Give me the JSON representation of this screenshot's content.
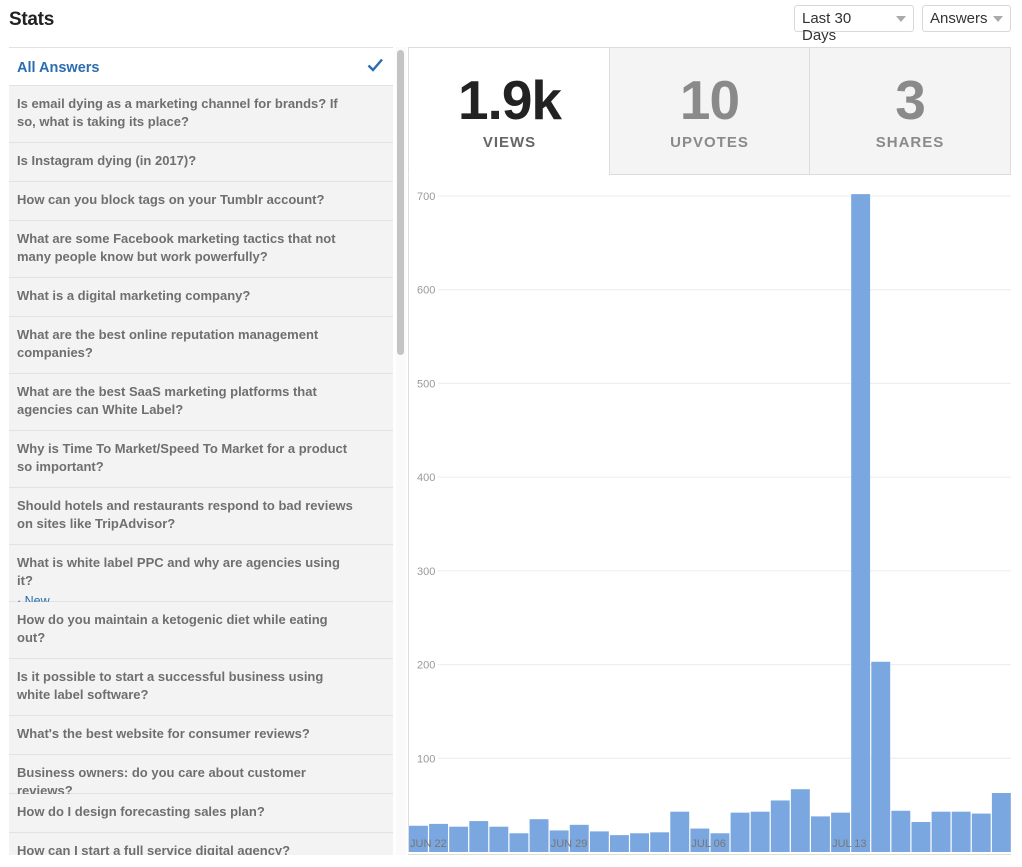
{
  "header": {
    "title": "Stats",
    "range_dropdown": "Last 30 Days",
    "type_dropdown": "Answers"
  },
  "sidebar": {
    "items": [
      {
        "label": "All Answers",
        "active": true
      },
      {
        "label": "Is email dying as a marketing channel for brands? If so, what is taking its place?"
      },
      {
        "label": "Is Instagram dying (in 2017)?"
      },
      {
        "label": "How can you block tags on your Tumblr account?"
      },
      {
        "label": "What are some Facebook marketing tactics that not many people know but work powerfully?"
      },
      {
        "label": "What is a digital marketing company?"
      },
      {
        "label": "What are the best online reputation management companies?"
      },
      {
        "label": "What are the best SaaS marketing platforms that agencies can White Label?"
      },
      {
        "label": "Why is Time To Market/Speed To Market for a product so important?"
      },
      {
        "label": "Should hotels and restaurants respond to bad reviews on sites like TripAdvisor?"
      },
      {
        "label": "What is white label PPC and why are agencies using it?",
        "badge": "· New"
      },
      {
        "label": "How do you maintain a ketogenic diet while eating out?"
      },
      {
        "label": "Is it possible to start a successful business using white label software?"
      },
      {
        "label": "What's the best website for consumer reviews?"
      },
      {
        "label": "Business owners: do you care about customer reviews?"
      },
      {
        "label": "How do I design forecasting sales plan?"
      },
      {
        "label": "How can I start a full service digital agency?"
      }
    ]
  },
  "stats": {
    "views": {
      "value": "1.9k",
      "label": "VIEWS"
    },
    "upvotes": {
      "value": "10",
      "label": "UPVOTES"
    },
    "shares": {
      "value": "3",
      "label": "SHARES"
    }
  },
  "colors": {
    "bar": "#7aa7e0",
    "accent": "#2b6dad"
  },
  "chart_data": {
    "type": "bar",
    "ylim": [
      0,
      700
    ],
    "yticks": [
      100,
      200,
      300,
      400,
      500,
      600,
      700
    ],
    "xtick_labels": [
      "JUN 22",
      "JUN 29",
      "JUL 06",
      "JUL 13"
    ],
    "categories": [
      "JUN 22",
      "JUN 23",
      "JUN 24",
      "JUN 25",
      "JUN 26",
      "JUN 27",
      "JUN 28",
      "JUN 29",
      "JUN 30",
      "JUL 01",
      "JUL 02",
      "JUL 03",
      "JUL 04",
      "JUL 05",
      "JUL 06",
      "JUL 07",
      "JUL 08",
      "JUL 09",
      "JUL 10",
      "JUL 11",
      "JUL 12",
      "JUL 13",
      "JUL 14",
      "JUL 15",
      "JUL 16",
      "JUL 17",
      "JUL 18",
      "JUL 19",
      "JUL 20",
      "JUL 21"
    ],
    "values": [
      28,
      30,
      27,
      33,
      27,
      20,
      35,
      23,
      29,
      22,
      18,
      20,
      21,
      43,
      25,
      20,
      42,
      43,
      55,
      67,
      38,
      42,
      702,
      203,
      44,
      32,
      43,
      43,
      41,
      63
    ],
    "grid": true,
    "legend": "none"
  }
}
